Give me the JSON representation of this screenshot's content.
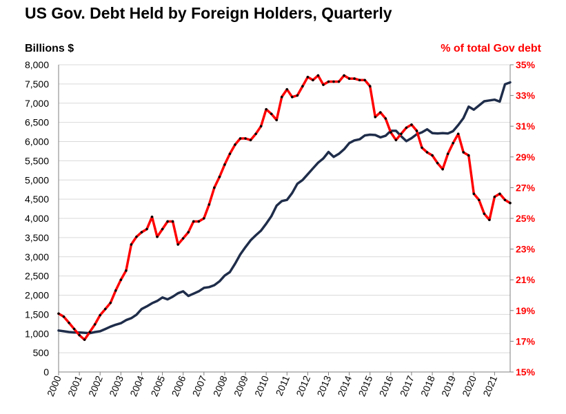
{
  "chart_data": {
    "type": "line",
    "title": "US Gov. Debt Held by Foreign Holders,  Quarterly",
    "ylabel_left": "Billions  $",
    "ylabel_right": "% of total Gov debt",
    "x_tick_labels": [
      "2000",
      "2001",
      "2002",
      "2003",
      "2004",
      "2005",
      "2006",
      "2007",
      "2008",
      "2009",
      "2010",
      "2011",
      "2012",
      "2013",
      "2014",
      "2015",
      "2016",
      "2017",
      "2018",
      "2019",
      "2020",
      "2021"
    ],
    "y_left_ticks": [
      0,
      500,
      1000,
      1500,
      2000,
      2500,
      3000,
      3500,
      4000,
      4500,
      5000,
      5500,
      6000,
      6500,
      7000,
      7500,
      8000
    ],
    "y_left_tick_labels": [
      "0",
      "500",
      "1,000",
      "1,500",
      "2,000",
      "2,500",
      "3,000",
      "3,500",
      "4,000",
      "4,500",
      "5,000",
      "5,500",
      "6,000",
      "6,500",
      "7,000",
      "7,500",
      "8,000"
    ],
    "y_right_ticks": [
      15,
      17,
      19,
      21,
      23,
      25,
      27,
      29,
      31,
      33,
      35
    ],
    "y_right_tick_labels": [
      "15%",
      "17%",
      "19%",
      "21%",
      "23%",
      "25%",
      "27%",
      "29%",
      "31%",
      "33%",
      "35%"
    ],
    "ylim_left": [
      0,
      8000
    ],
    "ylim_right": [
      15,
      35
    ],
    "xlim": [
      2000.0,
      2021.75
    ],
    "grid": "horizontal",
    "colors": {
      "billions": "#1f2d4a",
      "percent": "#ff0000",
      "markers": "#000000",
      "grid": "#d9d9d9",
      "axis": "#7f7f7f"
    },
    "series": [
      {
        "axis": "left",
        "x": [
          2000.0,
          2000.25,
          2000.5,
          2000.75,
          2001.0,
          2001.25,
          2001.5,
          2001.75,
          2002.0,
          2002.25,
          2002.5,
          2002.75,
          2003.0,
          2003.25,
          2003.5,
          2003.75,
          2004.0,
          2004.25,
          2004.5,
          2004.75,
          2005.0,
          2005.25,
          2005.5,
          2005.75,
          2006.0,
          2006.25,
          2006.5,
          2006.75,
          2007.0,
          2007.25,
          2007.5,
          2007.75,
          2008.0,
          2008.25,
          2008.5,
          2008.75,
          2009.0,
          2009.25,
          2009.5,
          2009.75,
          2010.0,
          2010.25,
          2010.5,
          2010.75,
          2011.0,
          2011.25,
          2011.5,
          2011.75,
          2012.0,
          2012.25,
          2012.5,
          2012.75,
          2013.0,
          2013.25,
          2013.5,
          2013.75,
          2014.0,
          2014.25,
          2014.5,
          2014.75,
          2015.0,
          2015.25,
          2015.5,
          2015.75,
          2016.0,
          2016.25,
          2016.5,
          2016.75,
          2017.0,
          2017.25,
          2017.5,
          2017.75,
          2018.0,
          2018.25,
          2018.5,
          2018.75,
          2019.0,
          2019.25,
          2019.5,
          2019.75,
          2020.0,
          2020.25,
          2020.5,
          2020.75,
          2021.0,
          2021.25,
          2021.5,
          2021.75
        ],
        "values": [
          1080,
          1060,
          1040,
          1030,
          1030,
          1020,
          1010,
          1040,
          1060,
          1120,
          1180,
          1230,
          1270,
          1350,
          1400,
          1490,
          1640,
          1710,
          1790,
          1850,
          1940,
          1890,
          1960,
          2050,
          2100,
          1980,
          2040,
          2100,
          2190,
          2210,
          2260,
          2360,
          2510,
          2600,
          2820,
          3060,
          3250,
          3430,
          3560,
          3680,
          3860,
          4060,
          4330,
          4450,
          4480,
          4660,
          4900,
          5000,
          5150,
          5300,
          5450,
          5560,
          5730,
          5600,
          5680,
          5800,
          5960,
          6030,
          6060,
          6160,
          6180,
          6170,
          6110,
          6150,
          6280,
          6280,
          6140,
          6010,
          6090,
          6190,
          6240,
          6320,
          6220,
          6210,
          6220,
          6210,
          6270,
          6430,
          6610,
          6910,
          6830,
          6940,
          7050,
          7070,
          7090,
          7040,
          7490,
          7540
        ]
      },
      {
        "axis": "right",
        "x": [
          2000.0,
          2000.25,
          2000.5,
          2000.75,
          2001.0,
          2001.25,
          2001.5,
          2001.75,
          2002.0,
          2002.25,
          2002.5,
          2002.75,
          2003.0,
          2003.25,
          2003.5,
          2003.75,
          2004.0,
          2004.25,
          2004.5,
          2004.75,
          2005.0,
          2005.25,
          2005.5,
          2005.75,
          2006.0,
          2006.25,
          2006.5,
          2006.75,
          2007.0,
          2007.25,
          2007.5,
          2007.75,
          2008.0,
          2008.25,
          2008.5,
          2008.75,
          2009.0,
          2009.25,
          2009.5,
          2009.75,
          2010.0,
          2010.25,
          2010.5,
          2010.75,
          2011.0,
          2011.25,
          2011.5,
          2011.75,
          2012.0,
          2012.25,
          2012.5,
          2012.75,
          2013.0,
          2013.25,
          2013.5,
          2013.75,
          2014.0,
          2014.25,
          2014.5,
          2014.75,
          2015.0,
          2015.25,
          2015.5,
          2015.75,
          2016.0,
          2016.25,
          2016.5,
          2016.75,
          2017.0,
          2017.25,
          2017.5,
          2017.75,
          2018.0,
          2018.25,
          2018.5,
          2018.75,
          2019.0,
          2019.25,
          2019.5,
          2019.75,
          2020.0,
          2020.25,
          2020.5,
          2020.75,
          2021.0,
          2021.25,
          2021.5,
          2021.75
        ],
        "values": [
          18.8,
          18.6,
          18.2,
          17.8,
          17.4,
          17.1,
          17.6,
          18.1,
          18.7,
          19.1,
          19.5,
          20.3,
          21.0,
          21.6,
          23.3,
          23.8,
          24.1,
          24.3,
          25.1,
          23.8,
          24.3,
          24.8,
          24.8,
          23.3,
          23.7,
          24.1,
          24.8,
          24.8,
          25.0,
          25.9,
          27.0,
          27.7,
          28.5,
          29.2,
          29.8,
          30.2,
          30.2,
          30.1,
          30.5,
          31.0,
          32.1,
          31.8,
          31.4,
          32.9,
          33.4,
          32.9,
          33.0,
          33.6,
          34.2,
          34.0,
          34.3,
          33.7,
          33.9,
          33.9,
          33.9,
          34.3,
          34.1,
          34.1,
          34.0,
          34.0,
          33.6,
          31.6,
          31.9,
          31.5,
          30.6,
          30.1,
          30.5,
          30.9,
          31.1,
          30.7,
          29.6,
          29.3,
          29.1,
          28.6,
          28.2,
          29.2,
          29.9,
          30.5,
          29.3,
          29.1,
          26.6,
          26.2,
          25.3,
          24.9,
          26.4,
          26.6,
          26.2,
          26.0
        ]
      }
    ]
  }
}
